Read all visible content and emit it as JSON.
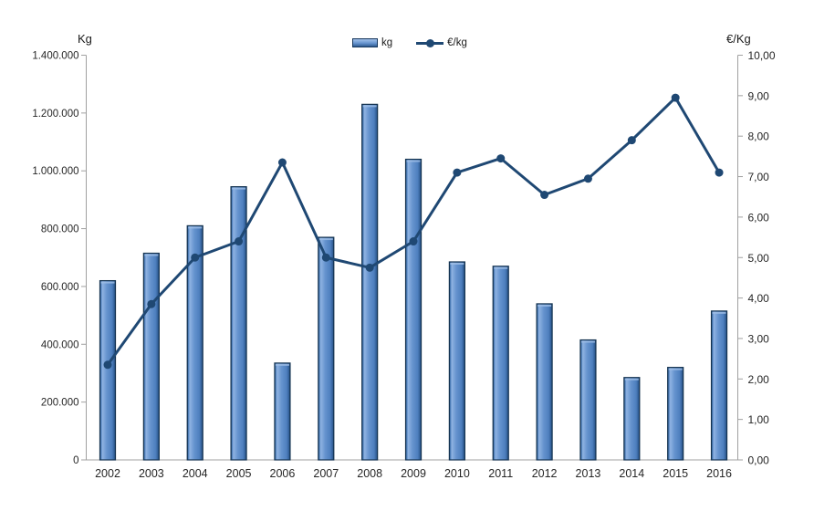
{
  "chart_data": {
    "type": "combo",
    "title": "",
    "categories": [
      "2002",
      "2003",
      "2004",
      "2005",
      "2006",
      "2007",
      "2008",
      "2009",
      "2010",
      "2011",
      "2012",
      "2013",
      "2014",
      "2015",
      "2016"
    ],
    "series": [
      {
        "name": "kg",
        "type": "bar",
        "axis": "left",
        "values": [
          620000,
          715000,
          810000,
          945000,
          335000,
          770000,
          1230000,
          1040000,
          685000,
          670000,
          540000,
          415000,
          285000,
          320000,
          515000
        ]
      },
      {
        "name": "€/kg",
        "type": "line",
        "axis": "right",
        "values": [
          2.35,
          3.85,
          5.0,
          5.4,
          7.35,
          5.0,
          4.75,
          5.4,
          7.1,
          7.45,
          6.55,
          6.95,
          7.9,
          8.95,
          7.1
        ]
      }
    ],
    "left_axis": {
      "title": "Kg",
      "min": 0,
      "max": 1400000,
      "step": 200000,
      "tick_labels": [
        "0",
        "200.000",
        "400.000",
        "600.000",
        "800.000",
        "1.000.000",
        "1.200.000",
        "1.400.000"
      ]
    },
    "right_axis": {
      "title": "€/Kg",
      "min": 0,
      "max": 10,
      "step": 1,
      "tick_labels": [
        "0,00",
        "1,00",
        "2,00",
        "3,00",
        "4,00",
        "5,00",
        "6,00",
        "7,00",
        "8,00",
        "9,00",
        "10,00"
      ]
    },
    "x_axis": {
      "tick_labels": [
        "2002",
        "2003",
        "2004",
        "2005",
        "2006",
        "2007",
        "2008",
        "2009",
        "2010",
        "2011",
        "2012",
        "2013",
        "2014",
        "2015",
        "2016"
      ]
    },
    "legend": {
      "position": "top",
      "items": [
        {
          "label": "kg",
          "marker": "bar"
        },
        {
          "label": "€/kg",
          "marker": "line-dot"
        }
      ]
    },
    "grid": false,
    "colors": {
      "bar_highlight": "#8FB3E2",
      "bar_mid": "#6593CE",
      "bar_dark": "#2E5A91",
      "bar_edge": "#1C3F6E",
      "bar_stroke": "#14324F",
      "bar_cap": "#9FBEE6",
      "line": "#1F4873",
      "axis": "#A0A0A0",
      "text": "#262626"
    }
  }
}
